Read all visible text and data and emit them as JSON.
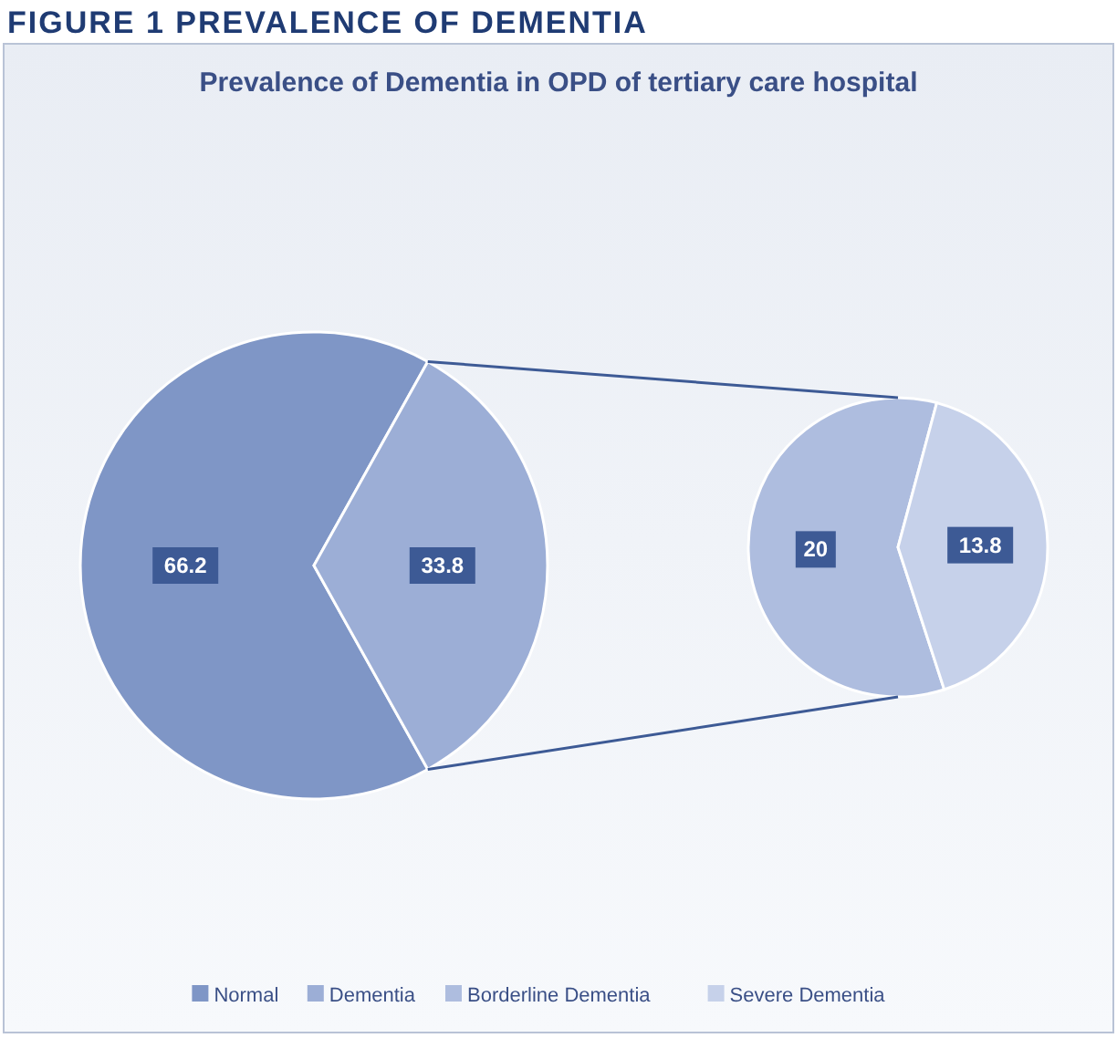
{
  "chart_data": [
    {
      "type": "pie",
      "title": "FIGURE 1 PREVALENCE OF DEMENTIA",
      "subtitle": "Prevalence of Dementia in OPD of tertiary care hospital",
      "categories": [
        "Normal",
        "Dementia"
      ],
      "values": [
        66.2,
        33.8
      ],
      "colors": [
        "#7f96c6",
        "#9caed6"
      ],
      "data_labels": true,
      "legend": "bottom"
    },
    {
      "type": "pie",
      "categories": [
        "Borderline Dementia",
        "Severe Dementia"
      ],
      "values": [
        20,
        13.8
      ],
      "colors": [
        "#aebddf",
        "#c6d1ea"
      ],
      "data_labels": true,
      "legend": "bottom"
    }
  ]
}
